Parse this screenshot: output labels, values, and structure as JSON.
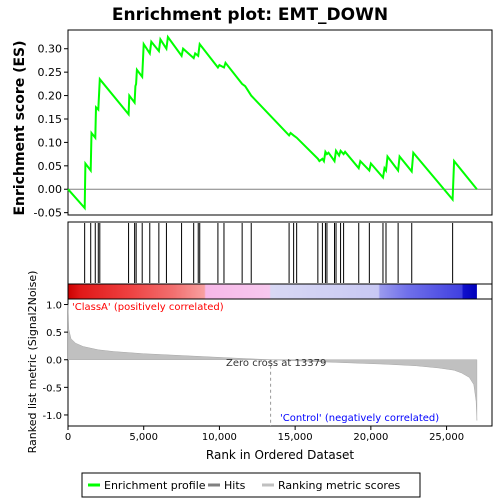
{
  "title": "Enrichment plot: EMT_DOWN",
  "colors": {
    "enrichment_line": "#00ff00",
    "zero_line": "#808080",
    "metric_fill": "#c0c0c0",
    "positive_label": "#ff0000",
    "negative_label": "#0000ff",
    "hits": "#000000"
  },
  "legend": {
    "items": [
      {
        "label": "Enrichment profile",
        "color": "#00ff00"
      },
      {
        "label": "Hits",
        "color": "#808080"
      },
      {
        "label": "Ranking metric scores",
        "color": "#c0c0c0"
      }
    ]
  },
  "annotations": {
    "positive": "'ClassA' (positively correlated)",
    "negative": "'Control' (negatively correlated)",
    "zero_cross": "Zero cross at 13379"
  },
  "chart_data": [
    {
      "type": "line",
      "name": "enrichment-score",
      "title": "Enrichment plot: EMT_DOWN",
      "ylabel": "Enrichment score (ES)",
      "xlim": [
        0,
        28000
      ],
      "ylim": [
        -0.055,
        0.34
      ],
      "yticks": [
        -0.05,
        0.0,
        0.05,
        0.1,
        0.15,
        0.2,
        0.25,
        0.3
      ],
      "ytick_labels": [
        "-0.05",
        "0.00",
        "0.05",
        "0.10",
        "0.15",
        "0.20",
        "0.25",
        "0.30"
      ],
      "grid": false,
      "x": [
        0,
        1100,
        1150,
        1500,
        1550,
        1800,
        1850,
        2000,
        2100,
        4000,
        4050,
        4400,
        4450,
        4500,
        4550,
        4900,
        5000,
        5400,
        5500,
        6000,
        6100,
        6500,
        6600,
        7500,
        7600,
        8300,
        8400,
        8600,
        8700,
        9900,
        10000,
        10300,
        10400,
        11500,
        11700,
        12100,
        14600,
        14700,
        14900,
        15100,
        16500,
        16600,
        16800,
        16900,
        17000,
        17100,
        17200,
        17600,
        17700,
        17900,
        18000,
        18200,
        18300,
        19200,
        19300,
        19900,
        20000,
        20800,
        20900,
        21000,
        21100,
        21800,
        21900,
        22700,
        22800,
        25400,
        25500,
        27000
      ],
      "y": [
        0.0,
        -0.04,
        0.055,
        0.04,
        0.12,
        0.11,
        0.175,
        0.17,
        0.235,
        0.16,
        0.2,
        0.185,
        0.22,
        0.225,
        0.255,
        0.24,
        0.31,
        0.29,
        0.315,
        0.295,
        0.32,
        0.3,
        0.325,
        0.285,
        0.3,
        0.28,
        0.29,
        0.285,
        0.31,
        0.26,
        0.265,
        0.26,
        0.27,
        0.225,
        0.22,
        0.2,
        0.115,
        0.12,
        0.115,
        0.11,
        0.065,
        0.06,
        0.065,
        0.06,
        0.08,
        0.075,
        0.078,
        0.06,
        0.082,
        0.072,
        0.082,
        0.075,
        0.08,
        0.045,
        0.06,
        0.04,
        0.055,
        0.025,
        0.045,
        0.04,
        0.07,
        0.04,
        0.07,
        0.038,
        0.078,
        -0.022,
        0.06,
        0.0
      ]
    },
    {
      "type": "hits",
      "name": "hits",
      "positions": [
        1100,
        1500,
        1800,
        2000,
        2100,
        4000,
        4400,
        4500,
        4900,
        5400,
        6000,
        6500,
        7500,
        8300,
        8600,
        8700,
        9900,
        10300,
        11500,
        12100,
        14600,
        14900,
        15100,
        16500,
        16800,
        17000,
        17100,
        17600,
        17700,
        18000,
        18200,
        19200,
        19900,
        20800,
        21000,
        21800,
        22700,
        25400
      ]
    },
    {
      "type": "heatmap",
      "name": "rank-color-bar",
      "stops": [
        {
          "rank": 0,
          "color": "#cc0000"
        },
        {
          "rank": 800,
          "color": "#e01818"
        },
        {
          "rank": 4000,
          "color": "#ee4040"
        },
        {
          "rank": 7000,
          "color": "#f27070"
        },
        {
          "rank": 9000,
          "color": "#f8a0a0"
        },
        {
          "rank": 9100,
          "color": "#f7b8e8"
        },
        {
          "rank": 13300,
          "color": "#f7c8ee"
        },
        {
          "rank": 13400,
          "color": "#d8d8f4"
        },
        {
          "rank": 20500,
          "color": "#c8c8f4"
        },
        {
          "rank": 20600,
          "color": "#9a9aee"
        },
        {
          "rank": 22400,
          "color": "#7070ea"
        },
        {
          "rank": 26000,
          "color": "#4040e0"
        },
        {
          "rank": 26100,
          "color": "#1010cc"
        },
        {
          "rank": 27000,
          "color": "#0000bb"
        }
      ]
    },
    {
      "type": "area",
      "name": "ranked-list-metric",
      "ylabel": "Ranked list metric (Signal2Noise)",
      "xlabel": "Rank in Ordered Dataset",
      "xlim": [
        0,
        28000
      ],
      "ylim": [
        -1.2,
        1.1
      ],
      "xticks": [
        0,
        5000,
        10000,
        15000,
        20000,
        25000
      ],
      "xtick_labels": [
        "0",
        "5,000",
        "10,000",
        "15,000",
        "20,000",
        "25,000"
      ],
      "yticks": [
        -1.0,
        -0.5,
        0.0,
        0.5,
        1.0
      ],
      "ytick_labels": [
        "-1.0",
        "-0.5",
        "0.0",
        "0.5",
        "1.0"
      ],
      "zero_cross": 13379,
      "x": [
        0,
        50,
        200,
        500,
        1000,
        2000,
        3000,
        5000,
        8000,
        11000,
        13379,
        16000,
        19000,
        21000,
        23000,
        24500,
        25500,
        26000,
        26500,
        26800,
        26950,
        27000
      ],
      "y": [
        1.0,
        0.55,
        0.38,
        0.3,
        0.24,
        0.18,
        0.15,
        0.11,
        0.07,
        0.03,
        0.0,
        -0.03,
        -0.06,
        -0.08,
        -0.11,
        -0.15,
        -0.19,
        -0.24,
        -0.32,
        -0.45,
        -0.75,
        -1.1
      ]
    }
  ]
}
